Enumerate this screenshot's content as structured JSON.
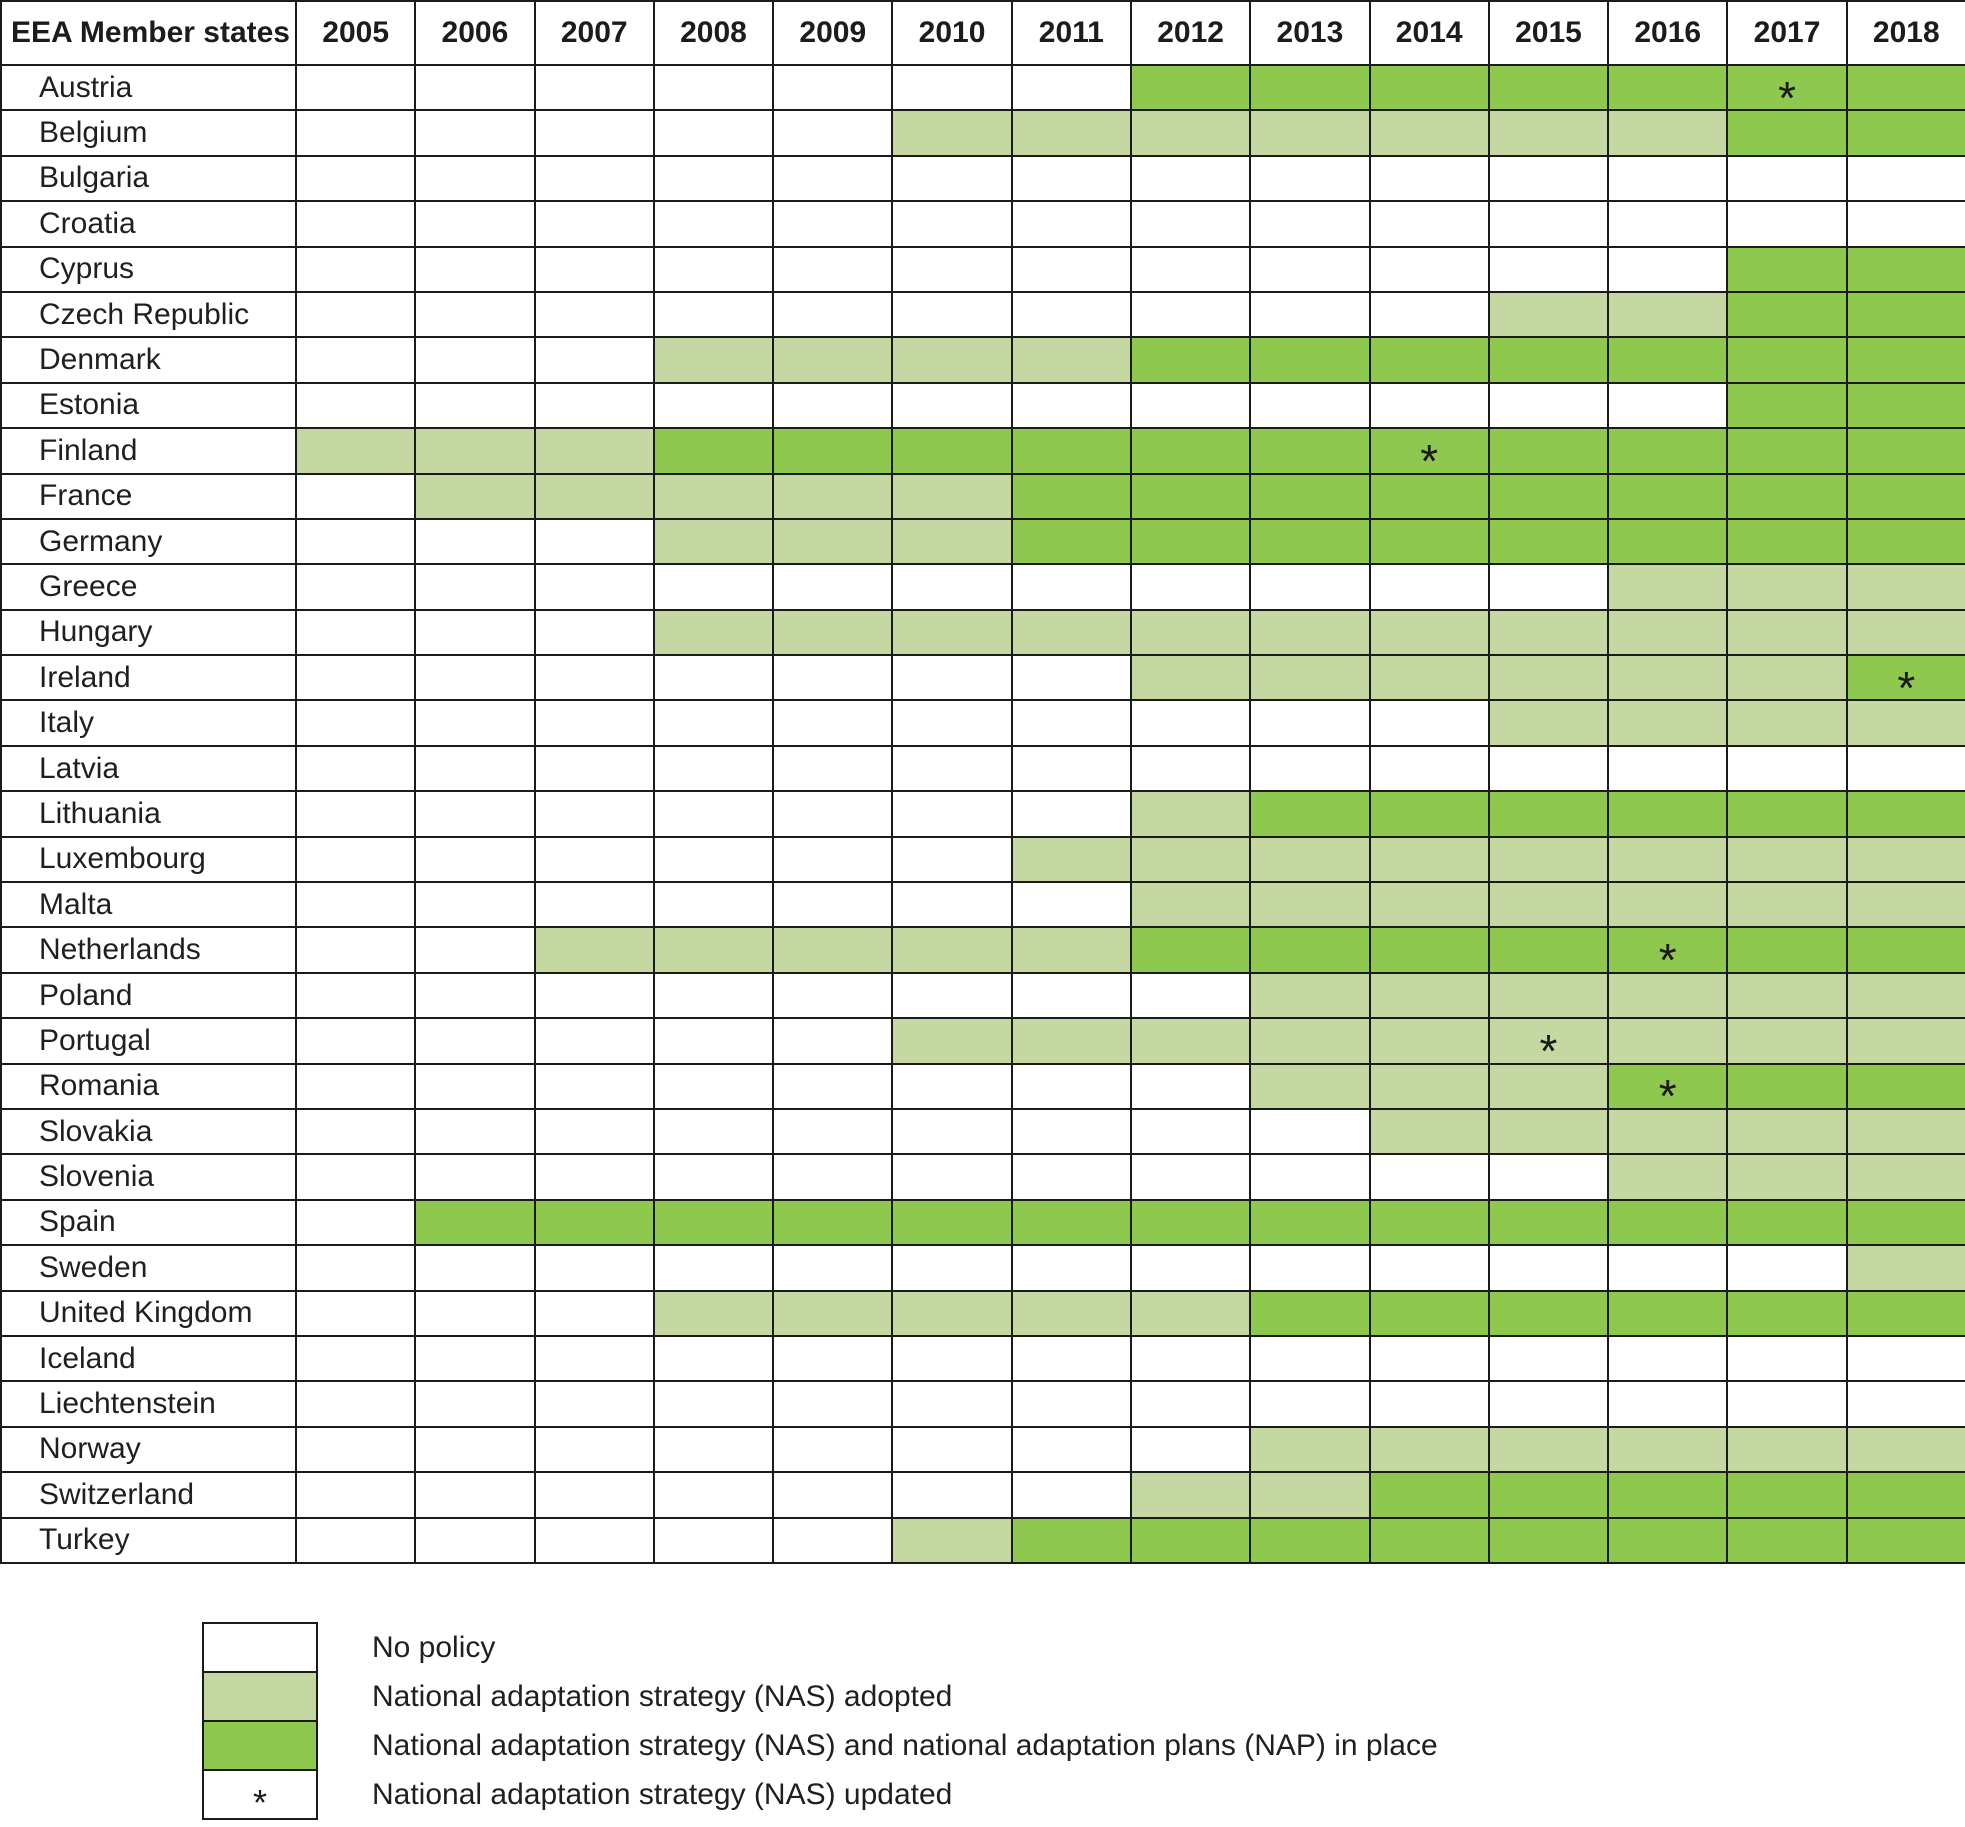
{
  "colors": {
    "nas_adopted": "#c6d8a2",
    "nas_nap_in_place": "#8fc84e",
    "grid": "#1b1b1b",
    "text": "#1f1f1f",
    "background": "#ffffff"
  },
  "legend": {
    "items": [
      {
        "status": 0,
        "symbol": "",
        "label": "No policy"
      },
      {
        "status": 1,
        "symbol": "",
        "label": "National adaptation strategy (NAS) adopted"
      },
      {
        "status": 2,
        "symbol": "",
        "label": "National adaptation strategy (NAS) and national adaptation plans (NAP) in place"
      },
      {
        "status": 0,
        "symbol": "*",
        "label": "National adaptation strategy (NAS) updated"
      }
    ]
  },
  "chart_data": {
    "type": "heatmap",
    "title": "",
    "corner_header": "EEA Member states",
    "x_labels": [
      "2005",
      "2006",
      "2007",
      "2008",
      "2009",
      "2010",
      "2011",
      "2012",
      "2013",
      "2014",
      "2015",
      "2016",
      "2017",
      "2018"
    ],
    "status_scale": {
      "0": "No policy",
      "1": "National adaptation strategy (NAS) adopted",
      "2": "National adaptation strategy (NAS) and national adaptation plans (NAP) in place"
    },
    "updated_marker": "*",
    "rows": [
      {
        "country": "Austria",
        "values": [
          0,
          0,
          0,
          0,
          0,
          0,
          0,
          2,
          2,
          2,
          2,
          2,
          2,
          2
        ],
        "updated_years": [
          "2017"
        ]
      },
      {
        "country": "Belgium",
        "values": [
          0,
          0,
          0,
          0,
          0,
          1,
          1,
          1,
          1,
          1,
          1,
          1,
          2,
          2
        ],
        "updated_years": []
      },
      {
        "country": "Bulgaria",
        "values": [
          0,
          0,
          0,
          0,
          0,
          0,
          0,
          0,
          0,
          0,
          0,
          0,
          0,
          0
        ],
        "updated_years": []
      },
      {
        "country": "Croatia",
        "values": [
          0,
          0,
          0,
          0,
          0,
          0,
          0,
          0,
          0,
          0,
          0,
          0,
          0,
          0
        ],
        "updated_years": []
      },
      {
        "country": "Cyprus",
        "values": [
          0,
          0,
          0,
          0,
          0,
          0,
          0,
          0,
          0,
          0,
          0,
          0,
          2,
          2
        ],
        "updated_years": []
      },
      {
        "country": "Czech Republic",
        "values": [
          0,
          0,
          0,
          0,
          0,
          0,
          0,
          0,
          0,
          0,
          1,
          1,
          2,
          2
        ],
        "updated_years": []
      },
      {
        "country": "Denmark",
        "values": [
          0,
          0,
          0,
          1,
          1,
          1,
          1,
          2,
          2,
          2,
          2,
          2,
          2,
          2
        ],
        "updated_years": []
      },
      {
        "country": "Estonia",
        "values": [
          0,
          0,
          0,
          0,
          0,
          0,
          0,
          0,
          0,
          0,
          0,
          0,
          2,
          2
        ],
        "updated_years": []
      },
      {
        "country": "Finland",
        "values": [
          1,
          1,
          1,
          2,
          2,
          2,
          2,
          2,
          2,
          2,
          2,
          2,
          2,
          2
        ],
        "updated_years": [
          "2014"
        ]
      },
      {
        "country": "France",
        "values": [
          0,
          1,
          1,
          1,
          1,
          1,
          2,
          2,
          2,
          2,
          2,
          2,
          2,
          2
        ],
        "updated_years": []
      },
      {
        "country": "Germany",
        "values": [
          0,
          0,
          0,
          1,
          1,
          1,
          2,
          2,
          2,
          2,
          2,
          2,
          2,
          2
        ],
        "updated_years": []
      },
      {
        "country": "Greece",
        "values": [
          0,
          0,
          0,
          0,
          0,
          0,
          0,
          0,
          0,
          0,
          0,
          1,
          1,
          1
        ],
        "updated_years": []
      },
      {
        "country": "Hungary",
        "values": [
          0,
          0,
          0,
          1,
          1,
          1,
          1,
          1,
          1,
          1,
          1,
          1,
          1,
          1
        ],
        "updated_years": []
      },
      {
        "country": "Ireland",
        "values": [
          0,
          0,
          0,
          0,
          0,
          0,
          0,
          1,
          1,
          1,
          1,
          1,
          1,
          2
        ],
        "updated_years": [
          "2018"
        ]
      },
      {
        "country": "Italy",
        "values": [
          0,
          0,
          0,
          0,
          0,
          0,
          0,
          0,
          0,
          0,
          1,
          1,
          1,
          1
        ],
        "updated_years": []
      },
      {
        "country": "Latvia",
        "values": [
          0,
          0,
          0,
          0,
          0,
          0,
          0,
          0,
          0,
          0,
          0,
          0,
          0,
          0
        ],
        "updated_years": []
      },
      {
        "country": "Lithuania",
        "values": [
          0,
          0,
          0,
          0,
          0,
          0,
          0,
          1,
          2,
          2,
          2,
          2,
          2,
          2
        ],
        "updated_years": []
      },
      {
        "country": "Luxembourg",
        "values": [
          0,
          0,
          0,
          0,
          0,
          0,
          1,
          1,
          1,
          1,
          1,
          1,
          1,
          1
        ],
        "updated_years": []
      },
      {
        "country": "Malta",
        "values": [
          0,
          0,
          0,
          0,
          0,
          0,
          0,
          1,
          1,
          1,
          1,
          1,
          1,
          1
        ],
        "updated_years": []
      },
      {
        "country": "Netherlands",
        "values": [
          0,
          0,
          1,
          1,
          1,
          1,
          1,
          2,
          2,
          2,
          2,
          2,
          2,
          2
        ],
        "updated_years": [
          "2016"
        ]
      },
      {
        "country": "Poland",
        "values": [
          0,
          0,
          0,
          0,
          0,
          0,
          0,
          0,
          1,
          1,
          1,
          1,
          1,
          1
        ],
        "updated_years": []
      },
      {
        "country": "Portugal",
        "values": [
          0,
          0,
          0,
          0,
          0,
          1,
          1,
          1,
          1,
          1,
          1,
          1,
          1,
          1
        ],
        "updated_years": [
          "2015"
        ]
      },
      {
        "country": "Romania",
        "values": [
          0,
          0,
          0,
          0,
          0,
          0,
          0,
          0,
          1,
          1,
          1,
          2,
          2,
          2
        ],
        "updated_years": [
          "2016"
        ]
      },
      {
        "country": "Slovakia",
        "values": [
          0,
          0,
          0,
          0,
          0,
          0,
          0,
          0,
          0,
          1,
          1,
          1,
          1,
          1
        ],
        "updated_years": []
      },
      {
        "country": "Slovenia",
        "values": [
          0,
          0,
          0,
          0,
          0,
          0,
          0,
          0,
          0,
          0,
          0,
          1,
          1,
          1
        ],
        "updated_years": []
      },
      {
        "country": "Spain",
        "values": [
          0,
          2,
          2,
          2,
          2,
          2,
          2,
          2,
          2,
          2,
          2,
          2,
          2,
          2
        ],
        "updated_years": []
      },
      {
        "country": "Sweden",
        "values": [
          0,
          0,
          0,
          0,
          0,
          0,
          0,
          0,
          0,
          0,
          0,
          0,
          0,
          1
        ],
        "updated_years": []
      },
      {
        "country": "United Kingdom",
        "values": [
          0,
          0,
          0,
          1,
          1,
          1,
          1,
          1,
          2,
          2,
          2,
          2,
          2,
          2
        ],
        "updated_years": []
      },
      {
        "country": "Iceland",
        "values": [
          0,
          0,
          0,
          0,
          0,
          0,
          0,
          0,
          0,
          0,
          0,
          0,
          0,
          0
        ],
        "updated_years": []
      },
      {
        "country": "Liechtenstein",
        "values": [
          0,
          0,
          0,
          0,
          0,
          0,
          0,
          0,
          0,
          0,
          0,
          0,
          0,
          0
        ],
        "updated_years": []
      },
      {
        "country": "Norway",
        "values": [
          0,
          0,
          0,
          0,
          0,
          0,
          0,
          0,
          1,
          1,
          1,
          1,
          1,
          1
        ],
        "updated_years": []
      },
      {
        "country": "Switzerland",
        "values": [
          0,
          0,
          0,
          0,
          0,
          0,
          0,
          1,
          1,
          2,
          2,
          2,
          2,
          2
        ],
        "updated_years": []
      },
      {
        "country": "Turkey",
        "values": [
          0,
          0,
          0,
          0,
          0,
          1,
          2,
          2,
          2,
          2,
          2,
          2,
          2,
          2
        ],
        "updated_years": []
      }
    ]
  }
}
